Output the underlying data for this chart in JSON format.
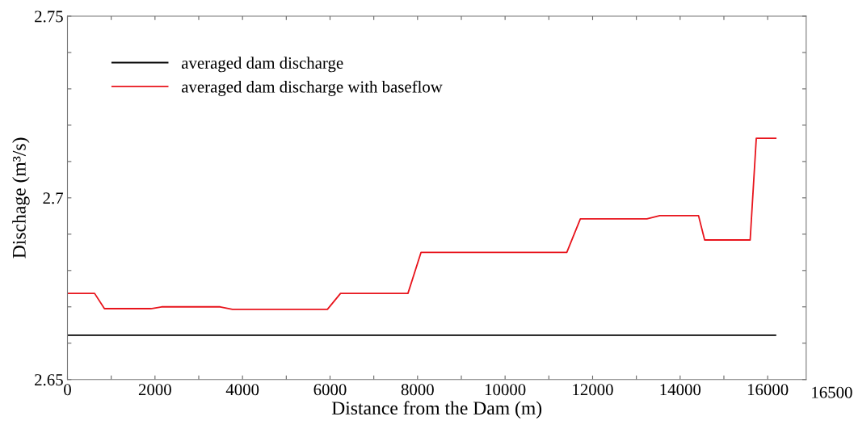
{
  "chart_data": {
    "type": "line",
    "xlabel": "Distance from the Dam (m)",
    "ylabel": "Dischage (m³/s)",
    "xlim": [
      0,
      16880
    ],
    "annotations": [
      "16500"
    ],
    "xticks": [
      0,
      {
        "value": 1000,
        "label": null
      },
      2000,
      {
        "value": 3000,
        "label": null
      },
      4000,
      {
        "value": 5000,
        "label": null
      },
      6000,
      {
        "value": 7000,
        "label": null
      },
      8000,
      {
        "value": 9000,
        "label": null
      },
      10000,
      {
        "value": 11000,
        "label": null
      },
      12000,
      {
        "value": 13000,
        "label": null
      },
      14000,
      {
        "value": 15000,
        "label": null
      },
      16000
    ],
    "ylim": [
      2.65,
      2.75
    ],
    "yticks": [
      2.65,
      {
        "value": 2.66,
        "label": null
      },
      {
        "value": 2.67,
        "label": null
      },
      {
        "value": 2.68,
        "label": null
      },
      {
        "value": 2.69,
        "label": null
      },
      2.7,
      {
        "value": 2.71,
        "label": null
      },
      {
        "value": 2.72,
        "label": null
      },
      {
        "value": 2.73,
        "label": null
      },
      {
        "value": 2.74,
        "label": null
      },
      2.75
    ],
    "grid": false,
    "legend": "top left",
    "line_style": "solid",
    "series": [
      {
        "name": "averaged dam discharge",
        "color": "#000000",
        "x": [
          0,
          16180
        ],
        "values": [
          2.6622,
          2.6622
        ]
      },
      {
        "name": "averaged dam discharge with baseflow",
        "color": "#e8141c",
        "x": [
          0,
          620,
          845,
          1905,
          2150,
          3490,
          3770,
          5940,
          6240,
          7780,
          8080,
          11410,
          11720,
          13240,
          13535,
          14420,
          14560,
          15600,
          15740,
          16185
        ],
        "values": [
          2.6737,
          2.6737,
          2.6695,
          2.6695,
          2.67,
          2.67,
          2.6693,
          2.6693,
          2.6737,
          2.6737,
          2.685,
          2.685,
          2.6942,
          2.6942,
          2.6951,
          2.6951,
          2.6884,
          2.6884,
          2.7164,
          2.7164
        ]
      }
    ]
  }
}
